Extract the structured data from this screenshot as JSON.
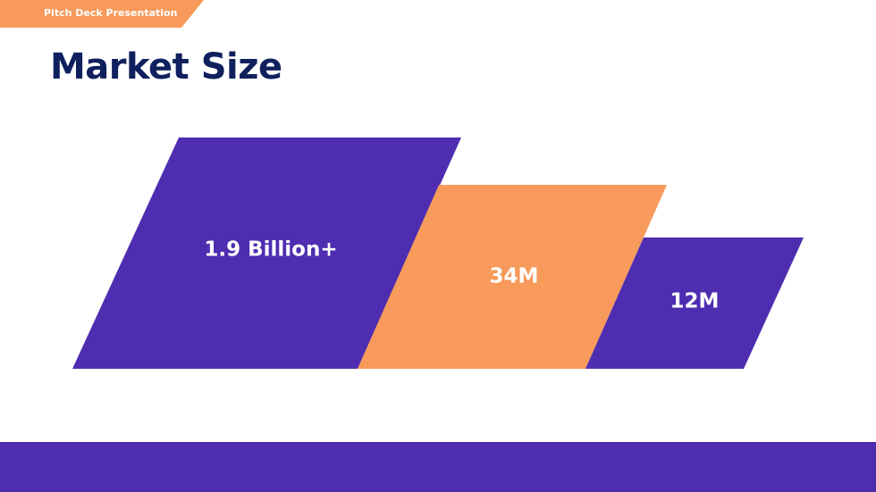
{
  "header": {
    "tag_label": "Pitch Deck Presentation",
    "title": "Market Size"
  },
  "segments": [
    {
      "label": "1.9 Billion+",
      "color": "#4E2DB1"
    },
    {
      "label": "34M",
      "color": "#F79A5B"
    },
    {
      "label": "12M",
      "color": "#4E2DB1"
    }
  ],
  "colors": {
    "primary": "#4E2DB1",
    "accent": "#F79A5B",
    "title": "#10205E"
  }
}
